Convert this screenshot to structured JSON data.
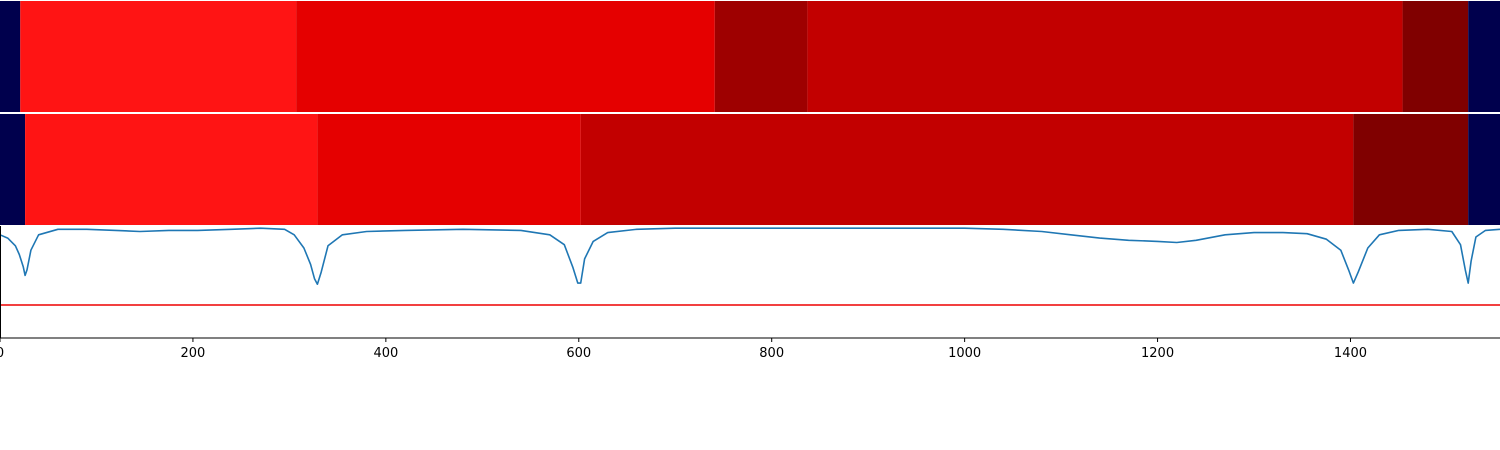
{
  "chart_data": [
    {
      "type": "heatmap",
      "xlim": [
        0,
        1555
      ],
      "segments": [
        {
          "start": 0,
          "end": 21,
          "color": "#00004d"
        },
        {
          "start": 21,
          "end": 307,
          "color": "#ff1414"
        },
        {
          "start": 307,
          "end": 741,
          "color": "#e50000"
        },
        {
          "start": 741,
          "end": 837,
          "color": "#9e0000"
        },
        {
          "start": 837,
          "end": 1454,
          "color": "#c20000"
        },
        {
          "start": 1454,
          "end": 1522,
          "color": "#800000"
        },
        {
          "start": 1522,
          "end": 1555,
          "color": "#00004d"
        }
      ]
    },
    {
      "type": "heatmap",
      "xlim": [
        0,
        1555
      ],
      "segments": [
        {
          "start": 0,
          "end": 26,
          "color": "#00004d"
        },
        {
          "start": 26,
          "end": 329,
          "color": "#ff1414"
        },
        {
          "start": 329,
          "end": 602,
          "color": "#e50000"
        },
        {
          "start": 602,
          "end": 1403,
          "color": "#c20000"
        },
        {
          "start": 1403,
          "end": 1522,
          "color": "#800000"
        },
        {
          "start": 1522,
          "end": 1555,
          "color": "#00004d"
        }
      ]
    },
    {
      "type": "line",
      "xlim": [
        0,
        1555
      ],
      "ylim": [
        -1.0,
        0.02
      ],
      "grid": false,
      "line_color": "#1f77b4",
      "threshold": -0.7,
      "threshold_color": "#ee0000",
      "xticks": [
        0,
        200,
        400,
        600,
        800,
        1000,
        1200,
        1400
      ],
      "x": [
        0,
        8,
        16,
        20,
        24,
        26,
        28,
        32,
        40,
        60,
        90,
        120,
        145,
        175,
        205,
        240,
        270,
        295,
        305,
        315,
        322,
        326,
        329,
        333,
        340,
        355,
        380,
        420,
        480,
        540,
        570,
        585,
        594,
        599,
        602,
        606,
        615,
        630,
        660,
        700,
        800,
        900,
        1000,
        1040,
        1080,
        1110,
        1140,
        1170,
        1200,
        1220,
        1240,
        1270,
        1300,
        1330,
        1355,
        1375,
        1390,
        1398,
        1403,
        1408,
        1418,
        1430,
        1450,
        1480,
        1505,
        1514,
        1519,
        1522,
        1525,
        1530,
        1540,
        1555
      ],
      "y": [
        -0.06,
        -0.09,
        -0.16,
        -0.24,
        -0.35,
        -0.43,
        -0.38,
        -0.2,
        -0.06,
        -0.01,
        -0.01,
        -0.02,
        -0.03,
        -0.02,
        -0.02,
        -0.01,
        0.0,
        -0.01,
        -0.06,
        -0.18,
        -0.33,
        -0.46,
        -0.51,
        -0.4,
        -0.16,
        -0.06,
        -0.03,
        -0.02,
        -0.01,
        -0.02,
        -0.06,
        -0.15,
        -0.36,
        -0.5,
        -0.5,
        -0.28,
        -0.12,
        -0.04,
        -0.01,
        0.0,
        0.0,
        0.0,
        0.0,
        -0.01,
        -0.03,
        -0.06,
        -0.09,
        -0.11,
        -0.12,
        -0.13,
        -0.11,
        -0.06,
        -0.04,
        -0.04,
        -0.05,
        -0.1,
        -0.2,
        -0.38,
        -0.5,
        -0.4,
        -0.18,
        -0.06,
        -0.02,
        -0.01,
        -0.03,
        -0.15,
        -0.38,
        -0.5,
        -0.3,
        -0.08,
        -0.02,
        -0.01
      ]
    }
  ]
}
